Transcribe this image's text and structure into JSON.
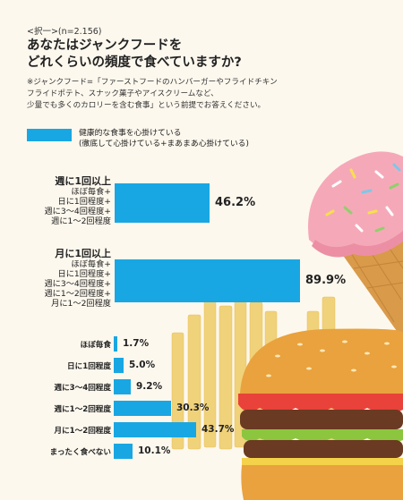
{
  "header": "<択一>(n=2.156)",
  "question": [
    "あなたはジャンクフードを",
    "どれくらいの頻度で食べていますか?"
  ],
  "note": [
    "※ジャンクフード=「ファーストフードのハンバーガーやフライドチキン",
    "フライドポテト、スナック菓子やアイスクリームなど、",
    "少量でも多くのカロリーを含む食事」という前提でお答えください。"
  ],
  "legend": [
    "健康的な食事を心掛けている",
    "(徹底して心掛けている+まあまあ心掛けている)"
  ],
  "colors": {
    "bar": "#19a7e3",
    "background": "#fdf8ee"
  },
  "chart_data": [
    {
      "type": "bar",
      "orientation": "horizontal",
      "series": [
        {
          "name": "健康的な食事を心掛けている",
          "values": [
            46.2,
            89.9
          ]
        }
      ],
      "groups": [
        {
          "title": "週に1回以上",
          "sub": [
            "ほぼ毎食+",
            "日に1回程度+",
            "週に3〜4回程度+",
            "週に1〜2回程度"
          ],
          "value": 46.2,
          "label": "46.2%"
        },
        {
          "title": "月に1回以上",
          "sub": [
            "ほぼ毎食+",
            "日に1回程度+",
            "週に3〜4回程度+",
            "週に1〜2回程度+",
            "月に1〜2回程度"
          ],
          "value": 89.9,
          "label": "89.9%"
        }
      ],
      "xlim": [
        0,
        100
      ]
    },
    {
      "type": "bar",
      "orientation": "horizontal",
      "categories": [
        "ほぼ毎食",
        "日に1回程度",
        "週に3〜4回程度",
        "週に1〜2回程度",
        "月に1〜2回程度",
        "まったく食べない"
      ],
      "values": [
        1.7,
        5.0,
        9.2,
        30.3,
        43.7,
        10.1
      ],
      "labels": [
        "1.7%",
        "5.0%",
        "9.2%",
        "30.3%",
        "43.7%",
        "10.1%"
      ],
      "xlim": [
        0,
        100
      ]
    }
  ]
}
